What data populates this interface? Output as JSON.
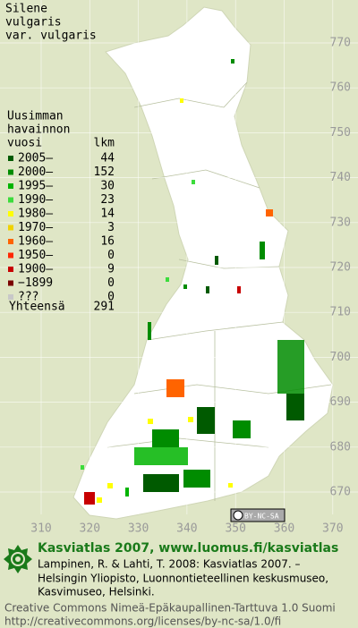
{
  "title": [
    "Silene",
    "vulgaris",
    "var. vulgaris"
  ],
  "legend": {
    "heading": [
      "Uusimman",
      "havainnon"
    ],
    "col_year": "vuosi",
    "col_count": "lkm",
    "rows": [
      {
        "label": "2005–",
        "count": 44,
        "color": "#005a00"
      },
      {
        "label": "2000–",
        "count": 152,
        "color": "#008c00"
      },
      {
        "label": "1995–",
        "count": 30,
        "color": "#00b400"
      },
      {
        "label": "1990–",
        "count": 23,
        "color": "#3cdc3c"
      },
      {
        "label": "1980–",
        "count": 14,
        "color": "#ffff00"
      },
      {
        "label": "1970–",
        "count": 3,
        "color": "#f0d200"
      },
      {
        "label": "1960–",
        "count": 16,
        "color": "#ff6400"
      },
      {
        "label": "1950–",
        "count": 0,
        "color": "#ff2800"
      },
      {
        "label": "1900–",
        "count": 9,
        "color": "#c80000"
      },
      {
        "label": "−1899",
        "count": 0,
        "color": "#7a0000"
      },
      {
        "label": "???",
        "count": 0,
        "color": "#c8c8c8"
      }
    ],
    "total_label": "Yhteensä",
    "total": 291
  },
  "grid": {
    "x_labels": [
      310,
      320,
      330,
      340,
      350,
      360,
      370
    ],
    "y_labels": [
      770,
      760,
      750,
      740,
      730,
      720,
      710,
      700,
      690,
      680,
      670
    ]
  },
  "license_badge": "BY-NC-SA",
  "footer": {
    "heading": "Kasviatlas 2007, www.luomus.fi/kasviatlas",
    "citation": [
      "Lampinen, R. & Lahti, T. 2008: Kasviatlas 2007. –",
      "Helsingin Yliopisto, Luonnontieteellinen keskusmuseo,",
      "Kasvimuseo, Helsinki."
    ],
    "license": [
      "Creative Commons Nimeä-Epäkaupallinen-Tarttuva 1.0 Suomi",
      "http://creativecommons.org/licenses/by-nc-sa/1.0/fi"
    ]
  }
}
